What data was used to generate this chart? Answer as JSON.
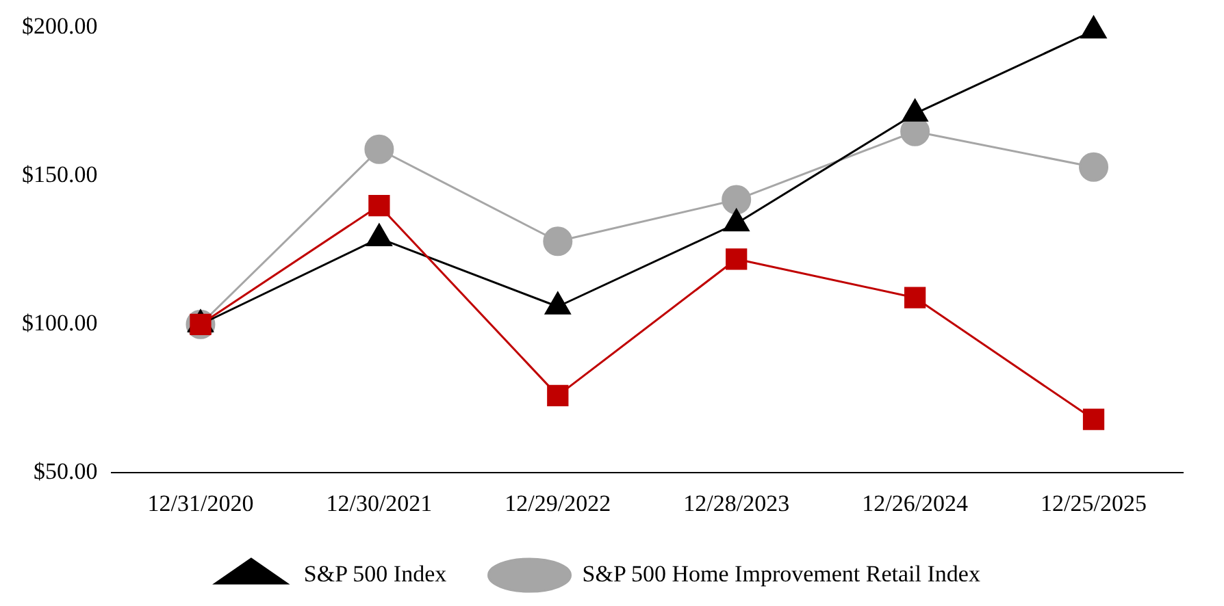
{
  "chart_data": {
    "type": "line",
    "categories": [
      "12/31/2020",
      "12/30/2021",
      "12/29/2022",
      "12/28/2023",
      "12/26/2024",
      "12/25/2025"
    ],
    "series": [
      {
        "color": "#c00000",
        "marker": "square",
        "values": [
          100,
          140,
          76,
          122,
          109,
          68
        ]
      },
      {
        "name": "S&P 500 Index",
        "color": "#000000",
        "marker": "triangle",
        "values": [
          100,
          129,
          106,
          134,
          171,
          199
        ]
      },
      {
        "name": "S&P 500 Home Improvement Retail Index",
        "color": "#a6a6a6",
        "marker": "circle",
        "values": [
          100,
          159,
          128,
          142,
          165,
          153
        ]
      }
    ],
    "ylim": [
      50,
      200
    ],
    "yticks": [
      {
        "value": 50,
        "label": "$50.00"
      },
      {
        "value": 100,
        "label": "$100.00"
      },
      {
        "value": 150,
        "label": "$150.00"
      },
      {
        "value": 200,
        "label": "$200.00"
      }
    ],
    "grid": false,
    "legend": "bottom"
  }
}
